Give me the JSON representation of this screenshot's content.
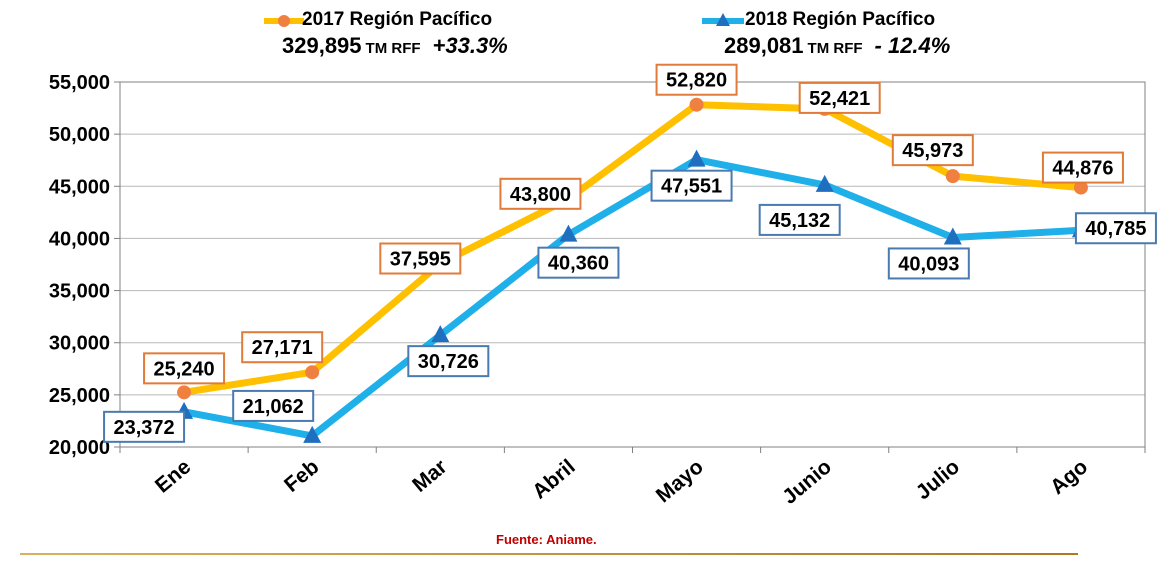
{
  "legend": {
    "s2017": {
      "title": "2017 Región Pacífico",
      "total": "329,895",
      "unit": "TM RFF",
      "pct": "+33.3%"
    },
    "s2018": {
      "title": "2018 Región Pacífico",
      "total": "289,081",
      "unit": "TM RFF",
      "pct": "- 12.4%"
    }
  },
  "source": "Fuente: Aniame.",
  "colors": {
    "s2017": "#ffc000",
    "s2017_marker": "#f08040",
    "s2017_box": "#e07b39",
    "s2018": "#1fb0ea",
    "s2018_marker": "#1f6fc0",
    "s2018_box": "#4a7ab0",
    "grid": "#b8b8b8",
    "footer": "#c00000"
  },
  "chart_data": {
    "type": "line",
    "categories": [
      "Ene",
      "Feb",
      "Mar",
      "Abril",
      "Mayo",
      "Junio",
      "Julio",
      "Ago"
    ],
    "ylim": [
      20000,
      55000
    ],
    "yticks": [
      20000,
      25000,
      30000,
      35000,
      40000,
      45000,
      50000,
      55000
    ],
    "ytick_labels": [
      "20,000",
      "25,000",
      "30,000",
      "35,000",
      "40,000",
      "45,000",
      "50,000",
      "55,000"
    ],
    "grid": true,
    "legend_position": "top",
    "series": [
      {
        "name": "2017 Región Pacífico",
        "values": [
          25240,
          27171,
          37595,
          43800,
          52820,
          52421,
          45973,
          44876
        ],
        "labels": [
          "25,240",
          "27,171",
          "37,595",
          "43,800",
          "52,820",
          "52,421",
          "45,973",
          "44,876"
        ],
        "marker": "circle"
      },
      {
        "name": "2018 Región Pacífico",
        "values": [
          23372,
          21062,
          30726,
          40360,
          47551,
          45132,
          40093,
          40785
        ],
        "labels": [
          "23,372",
          "21,062",
          "30,726",
          "40,360",
          "47,551",
          "45,132",
          "40,093",
          "40,785"
        ],
        "marker": "triangle"
      }
    ]
  }
}
